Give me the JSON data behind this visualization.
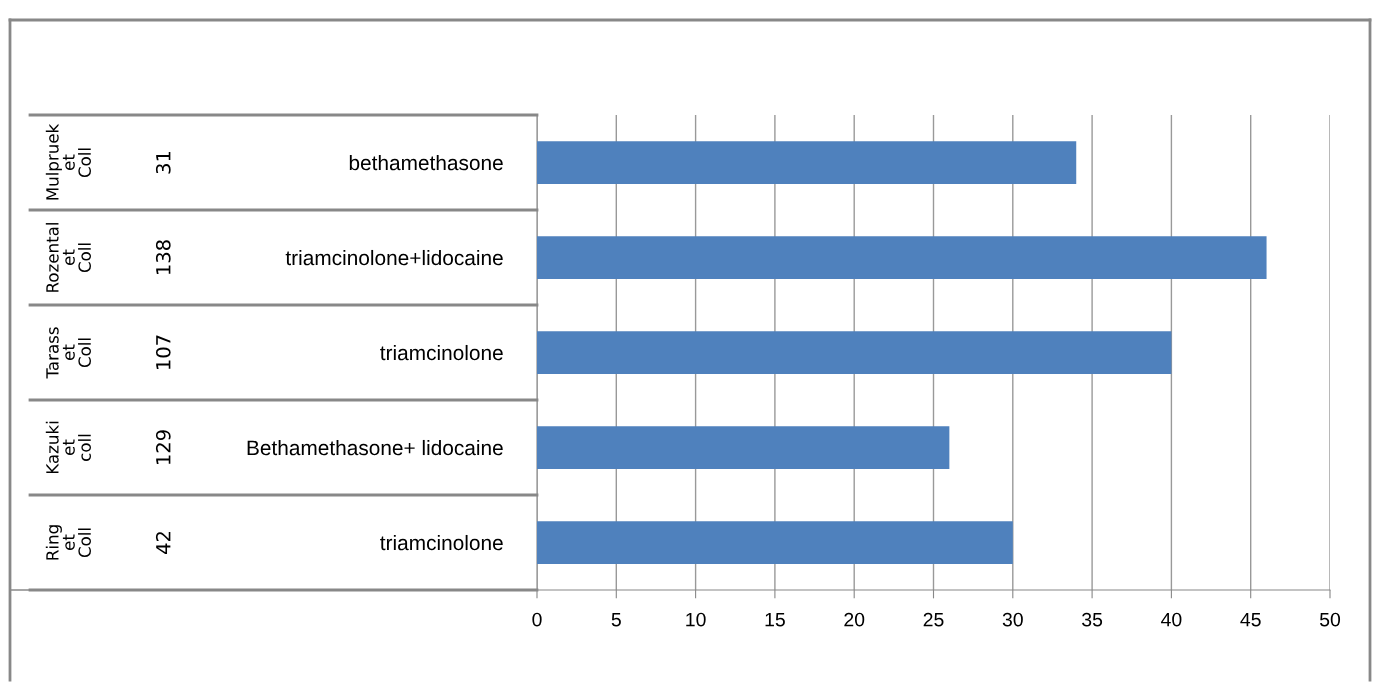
{
  "chart_data": {
    "type": "bar",
    "orientation": "horizontal",
    "categories": [
      "bethamethasone",
      "triamcinolone+lidocaine",
      "triamcinolone",
      "Bethamethasone+ lidocaine",
      "triamcinolone"
    ],
    "values": [
      34,
      46,
      40,
      26,
      30
    ],
    "color": "#4f81bd",
    "xlim": [
      0,
      50
    ],
    "xticks": [
      0,
      5,
      10,
      15,
      20,
      25,
      30,
      35,
      40,
      45,
      50
    ],
    "grid": "x",
    "annotations": [
      "Mulpruek et Coll",
      "Rozental et Coll",
      "Tarass et Coll",
      "Kazuki et coll",
      "Ring et Coll",
      "31",
      "138",
      "107",
      "129",
      "42"
    ]
  }
}
